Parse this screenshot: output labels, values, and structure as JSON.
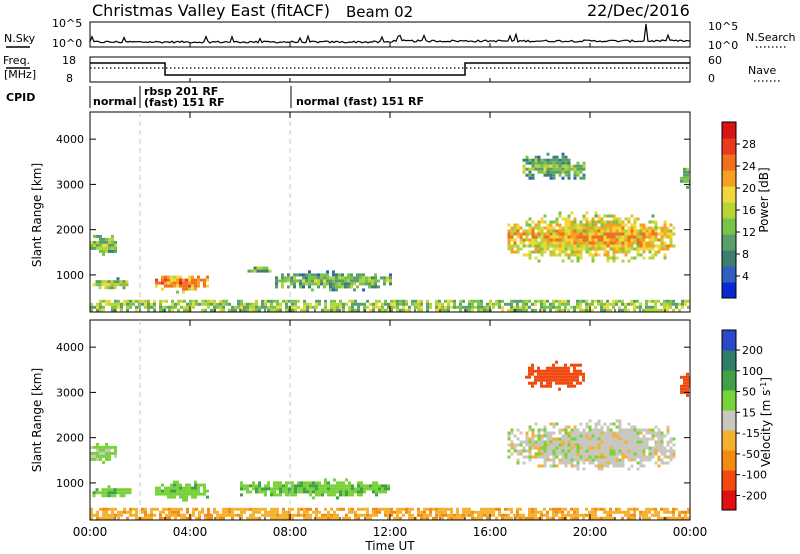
{
  "header": {
    "station": "Christmas Valley East (fitACF)",
    "beam": "Beam 02",
    "date": "22/Dec/2016"
  },
  "top_panels": {
    "nsky_label": "N.Sky",
    "nsearch_label": "N.Search",
    "nsky_ticks": [
      "10^5",
      "10^0"
    ],
    "nsearch_ticks": [
      "10^5",
      "10^0"
    ],
    "freq_label_1": "Freq.",
    "freq_label_2": "[MHz]",
    "freq_ticks": [
      "18",
      "8"
    ],
    "nave_label": "Nave",
    "nave_ticks": [
      "60",
      "0"
    ],
    "cpid_label": "CPID",
    "cpid_entries": [
      "normal",
      "rbsp 201 RF",
      "(fast) 151 RF",
      "normal (fast) 151 RF"
    ]
  },
  "chart_data": [
    {
      "type": "heatmap",
      "title": "",
      "parameter": "Power",
      "ylabel": "Slant Range [km]",
      "xlabel": "",
      "xlim": [
        "00:00",
        "24:00"
      ],
      "ylim": [
        180,
        4600
      ],
      "y_ticks": [
        1000,
        2000,
        3000,
        4000
      ],
      "colorbar": {
        "label": "Power [dB]",
        "ticks": [
          4,
          8,
          12,
          16,
          20,
          24,
          28
        ],
        "range": [
          0,
          32
        ],
        "colors": [
          "#0a28d2",
          "#2f5fc0",
          "#3e7e70",
          "#5a9f6a",
          "#78c44a",
          "#b4d438",
          "#f0d83a",
          "#f5a025",
          "#f07020",
          "#e83a1c",
          "#d81414"
        ]
      },
      "echo_regions": [
        {
          "t": [
            0.0,
            1.0
          ],
          "r": [
            1450,
            1950
          ],
          "power": 12
        },
        {
          "t": [
            0.1,
            1.5
          ],
          "r": [
            700,
            950
          ],
          "power": 14
        },
        {
          "t": [
            2.6,
            4.7
          ],
          "r": [
            650,
            1050
          ],
          "power": 22
        },
        {
          "t": [
            6.3,
            7.2
          ],
          "r": [
            1050,
            1250
          ],
          "power": 10
        },
        {
          "t": [
            7.4,
            12.0
          ],
          "r": [
            700,
            1100
          ],
          "power": 11
        },
        {
          "t": [
            16.7,
            23.4
          ],
          "r": [
            1300,
            2400
          ],
          "power": 18
        },
        {
          "t": [
            17.3,
            19.8
          ],
          "r": [
            3100,
            3700
          ],
          "power": 11
        },
        {
          "t": [
            23.6,
            24.0
          ],
          "r": [
            2900,
            3500
          ],
          "power": 12
        },
        {
          "t": [
            0.0,
            24.0
          ],
          "r": [
            200,
            450
          ],
          "power": 14
        }
      ]
    },
    {
      "type": "heatmap",
      "title": "",
      "parameter": "Velocity",
      "ylabel": "Slant Range [km]",
      "xlabel": "Time UT",
      "x_ticks": [
        "00:00",
        "04:00",
        "08:00",
        "12:00",
        "16:00",
        "20:00",
        "00:00"
      ],
      "xlim": [
        "00:00",
        "24:00"
      ],
      "ylim": [
        180,
        4600
      ],
      "y_ticks": [
        1000,
        2000,
        3000,
        4000
      ],
      "colorbar": {
        "label": "Velocity [m s^-1]",
        "ticks": [
          -200,
          -100,
          -50,
          -15,
          15,
          50,
          100,
          200
        ],
        "colors": [
          "#e01010",
          "#f04a10",
          "#f58a10",
          "#f5b030",
          "#c8c8c0",
          "#7ad23a",
          "#3fa048",
          "#2e7e6a",
          "#2a48c8"
        ]
      },
      "echo_regions": [
        {
          "t": [
            0.0,
            1.0
          ],
          "r": [
            1450,
            1950
          ],
          "velocity": 30
        },
        {
          "t": [
            0.1,
            1.6
          ],
          "r": [
            700,
            950
          ],
          "velocity": 40
        },
        {
          "t": [
            2.6,
            4.7
          ],
          "r": [
            650,
            1050
          ],
          "velocity": 35
        },
        {
          "t": [
            6.0,
            12.0
          ],
          "r": [
            700,
            1100
          ],
          "velocity": 40
        },
        {
          "t": [
            16.7,
            23.4
          ],
          "r": [
            1300,
            2400
          ],
          "velocity": 0
        },
        {
          "t": [
            17.4,
            19.8
          ],
          "r": [
            3100,
            3700
          ],
          "velocity": -180
        },
        {
          "t": [
            23.6,
            24.0
          ],
          "r": [
            2900,
            3500
          ],
          "velocity": -180
        },
        {
          "t": [
            0.0,
            24.0
          ],
          "r": [
            200,
            450
          ],
          "velocity": -40
        }
      ]
    }
  ],
  "colors": {
    "axis": "#000000",
    "dashed_marker": "#c8c8c8",
    "background": "#ffffff"
  }
}
